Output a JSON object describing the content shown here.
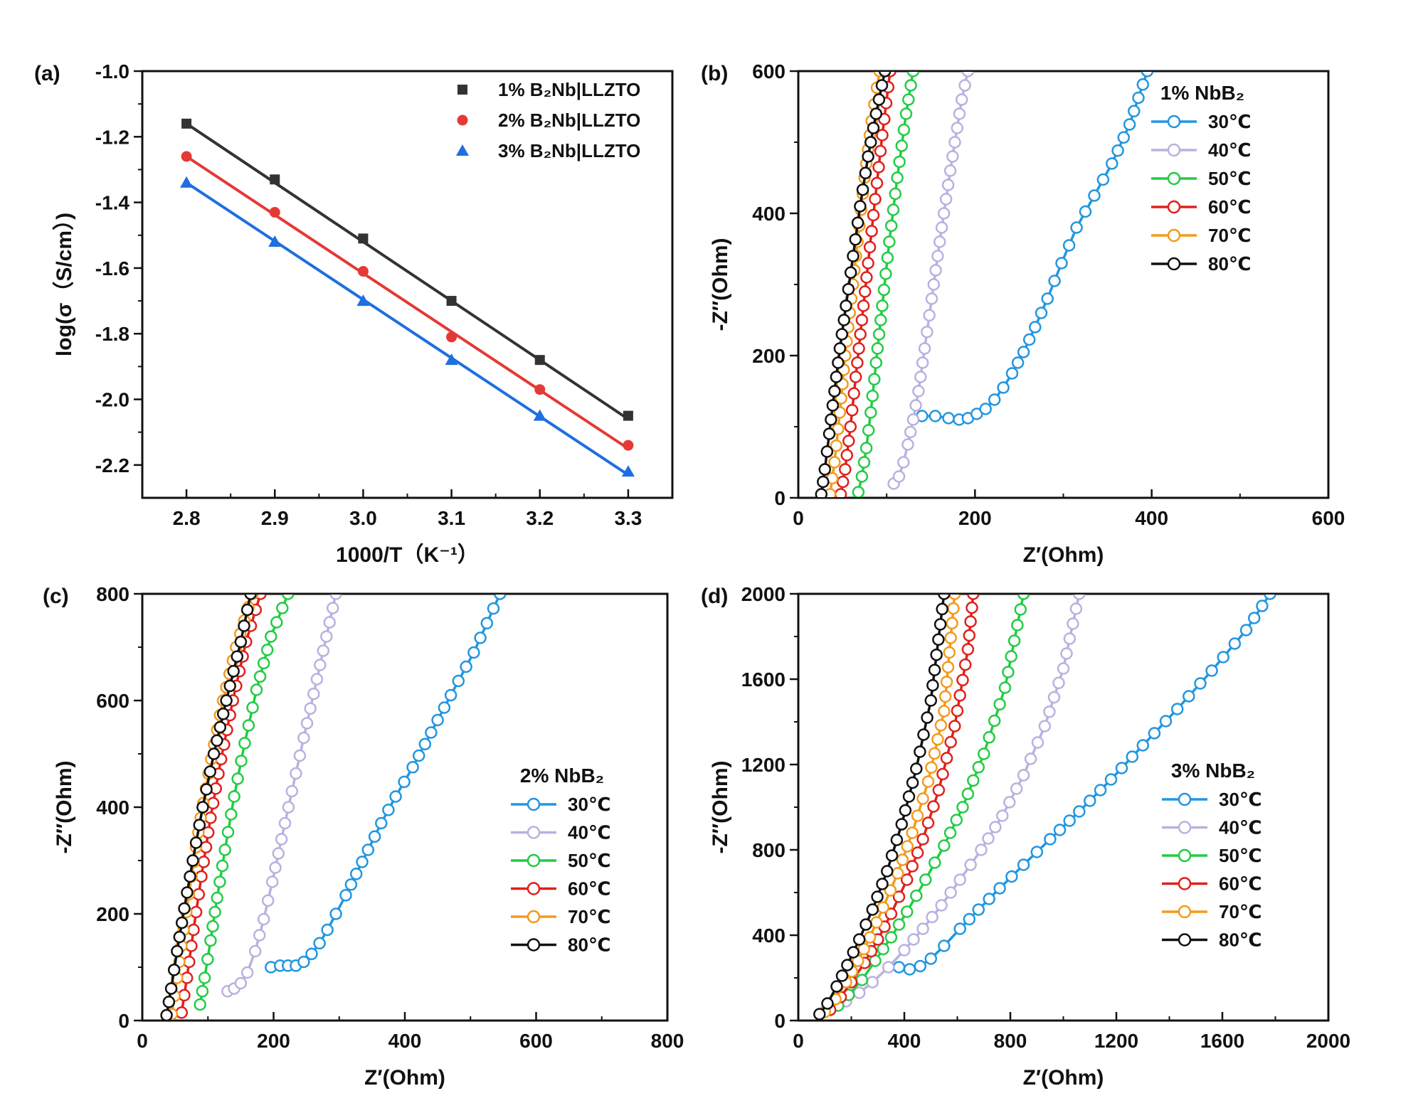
{
  "chart_data": [
    {
      "id": "a",
      "type": "scatter",
      "panel_label": "(a)",
      "xlabel": "1000/T（K⁻¹）",
      "ylabel": "log(σ（S/cm）)",
      "xlim": [
        2.75,
        3.35
      ],
      "ylim": [
        -2.3,
        -1.0
      ],
      "xticks": [
        2.8,
        2.9,
        3.0,
        3.1,
        3.2,
        3.3
      ],
      "xtick_labels": [
        "2.8",
        "2.9",
        "3.0",
        "3.1",
        "3.2",
        "3.3"
      ],
      "yticks": [
        -1.0,
        -1.2,
        -1.4,
        -1.6,
        -1.8,
        -2.0,
        -2.2
      ],
      "ytick_labels": [
        "-1.0",
        "-1.2",
        "-1.4",
        "-1.6",
        "-1.8",
        "-2.0",
        "-2.2"
      ],
      "legend_position": "top-right",
      "series": [
        {
          "name": "1% B₂Nb|LLZTO",
          "color": "#333333",
          "marker": "square",
          "x": [
            2.8,
            2.9,
            3.0,
            3.1,
            3.2,
            3.3
          ],
          "values": [
            -1.16,
            -1.33,
            -1.51,
            -1.7,
            -1.88,
            -2.05
          ],
          "fit": [
            -1.16,
            -2.06
          ]
        },
        {
          "name": "2% B₂Nb|LLZTO",
          "color": "#e53935",
          "marker": "circle",
          "x": [
            2.8,
            2.9,
            3.0,
            3.1,
            3.2,
            3.3
          ],
          "values": [
            -1.26,
            -1.43,
            -1.61,
            -1.81,
            -1.97,
            -2.14
          ],
          "fit": [
            -1.26,
            -2.15
          ]
        },
        {
          "name": "3% B₂Nb|LLZTO",
          "color": "#1e6fe0",
          "marker": "triangle",
          "x": [
            2.8,
            2.9,
            3.0,
            3.1,
            3.2,
            3.3
          ],
          "values": [
            -1.34,
            -1.52,
            -1.7,
            -1.88,
            -2.05,
            -2.22
          ],
          "fit": [
            -1.34,
            -2.23
          ]
        }
      ]
    },
    {
      "id": "b",
      "type": "line",
      "panel_label": "(b)",
      "xlabel": "Z′(Ohm)",
      "ylabel": "-Z′′(Ohm)",
      "xlim": [
        0,
        600
      ],
      "ylim": [
        0,
        600
      ],
      "xticks": [
        0,
        200,
        400,
        600
      ],
      "xtick_labels": [
        "0",
        "200",
        "400",
        "600"
      ],
      "yticks": [
        0,
        200,
        400,
        600
      ],
      "ytick_labels": [
        "0",
        "200",
        "400",
        "600"
      ],
      "legend_title": "1% NbB₂",
      "legend_position": "top-right",
      "series": [
        {
          "name": "30℃",
          "color": "#2196e0",
          "x": [
            140,
            155,
            170,
            182,
            192,
            202,
            212,
            222,
            232,
            242,
            255,
            268,
            282,
            298,
            315,
            335,
            355,
            375,
            395
          ],
          "values": [
            115,
            115,
            112,
            110,
            112,
            118,
            125,
            138,
            155,
            175,
            205,
            240,
            280,
            330,
            380,
            425,
            470,
            525,
            600
          ]
        },
        {
          "name": "40℃",
          "color": "#b8b2e0",
          "x": [
            108,
            114,
            119,
            124,
            130,
            136,
            143,
            151,
            160,
            172,
            185,
            192
          ],
          "values": [
            20,
            30,
            50,
            75,
            110,
            150,
            210,
            280,
            360,
            460,
            560,
            600
          ]
        },
        {
          "name": "50℃",
          "color": "#22cc44",
          "x": [
            68,
            72,
            77,
            82,
            88,
            95,
            103,
            112,
            122,
            130
          ],
          "values": [
            8,
            30,
            70,
            120,
            190,
            270,
            360,
            450,
            540,
            600
          ]
        },
        {
          "name": "60℃",
          "color": "#e0201c",
          "x": [
            48,
            53,
            59,
            65,
            72,
            79,
            87,
            95,
            104
          ],
          "values": [
            5,
            40,
            100,
            170,
            250,
            330,
            420,
            510,
            600
          ]
        },
        {
          "name": "70℃",
          "color": "#f39a1c",
          "x": [
            36,
            41,
            47,
            53,
            60,
            67,
            75,
            83,
            92
          ],
          "values": [
            5,
            50,
            120,
            200,
            280,
            360,
            450,
            530,
            600
          ]
        },
        {
          "name": "80℃",
          "color": "#111111",
          "x": [
            26,
            30,
            35,
            41,
            47,
            54,
            62,
            70,
            79,
            88,
            98
          ],
          "values": [
            5,
            40,
            90,
            150,
            210,
            270,
            340,
            410,
            480,
            540,
            600
          ]
        }
      ]
    },
    {
      "id": "c",
      "type": "line",
      "panel_label": "(c)",
      "xlabel": "Z′(Ohm)",
      "ylabel": "-Z′′(Ohm)",
      "xlim": [
        0,
        800
      ],
      "ylim": [
        0,
        800
      ],
      "xticks": [
        0,
        200,
        400,
        600,
        800
      ],
      "xtick_labels": [
        "0",
        "200",
        "400",
        "600",
        "800"
      ],
      "yticks": [
        0,
        200,
        400,
        600,
        800
      ],
      "ytick_labels": [
        "0",
        "200",
        "400",
        "600",
        "800"
      ],
      "legend_title": "2% NbB₂",
      "legend_position": "center-right",
      "series": [
        {
          "name": "30℃",
          "color": "#2196e0",
          "x": [
            196,
            210,
            222,
            234,
            246,
            258,
            270,
            282,
            295,
            310,
            326,
            344,
            364,
            386,
            412,
            440,
            470,
            505,
            545
          ],
          "values": [
            100,
            103,
            103,
            103,
            110,
            125,
            145,
            170,
            200,
            235,
            275,
            320,
            370,
            420,
            475,
            540,
            610,
            690,
            800
          ]
        },
        {
          "name": "40℃",
          "color": "#b8b2e0",
          "x": [
            130,
            140,
            150,
            160,
            172,
            185,
            198,
            212,
            228,
            246,
            266,
            295
          ],
          "values": [
            55,
            60,
            70,
            90,
            130,
            190,
            260,
            340,
            430,
            530,
            640,
            800
          ]
        },
        {
          "name": "50℃",
          "color": "#22cc44",
          "x": [
            88,
            95,
            104,
            114,
            126,
            140,
            156,
            174,
            196,
            222
          ],
          "values": [
            30,
            80,
            150,
            230,
            320,
            420,
            520,
            620,
            720,
            800
          ]
        },
        {
          "name": "60℃",
          "color": "#e0201c",
          "x": [
            60,
            68,
            78,
            90,
            104,
            120,
            138,
            158,
            180
          ],
          "values": [
            15,
            80,
            170,
            270,
            380,
            490,
            600,
            710,
            800
          ]
        },
        {
          "name": "70℃",
          "color": "#f39a1c",
          "x": [
            45,
            53,
            63,
            75,
            89,
            105,
            123,
            143,
            168
          ],
          "values": [
            12,
            80,
            170,
            270,
            380,
            490,
            600,
            700,
            800
          ]
        },
        {
          "name": "80℃",
          "color": "#111111",
          "x": [
            37,
            44,
            53,
            64,
            77,
            92,
            109,
            128,
            150,
            165
          ],
          "values": [
            10,
            60,
            130,
            210,
            300,
            400,
            500,
            600,
            710,
            800
          ]
        }
      ]
    },
    {
      "id": "d",
      "type": "line",
      "panel_label": "(d)",
      "xlabel": "Z′(Ohm)",
      "ylabel": "-Z′′(Ohm)",
      "xlim": [
        0,
        2000
      ],
      "ylim": [
        0,
        2000
      ],
      "xticks": [
        0,
        400,
        800,
        1200,
        1600,
        2000
      ],
      "xtick_labels": [
        "0",
        "400",
        "800",
        "1200",
        "1600",
        "2000"
      ],
      "yticks": [
        0,
        400,
        800,
        1200,
        1600,
        2000
      ],
      "ytick_labels": [
        "0",
        "400",
        "800",
        "1200",
        "1600",
        "2000"
      ],
      "legend_title": "3% NbB₂",
      "legend_position": "center-right",
      "series": [
        {
          "name": "30℃",
          "color": "#2196e0",
          "x": [
            380,
            420,
            460,
            500,
            550,
            610,
            680,
            760,
            850,
            950,
            1060,
            1180,
            1300,
            1430,
            1560,
            1690,
            1780
          ],
          "values": [
            250,
            240,
            255,
            290,
            350,
            430,
            520,
            620,
            730,
            850,
            980,
            1130,
            1290,
            1460,
            1640,
            1830,
            2000
          ]
        },
        {
          "name": "40℃",
          "color": "#b8b2e0",
          "x": [
            180,
            230,
            280,
            340,
            400,
            470,
            540,
            610,
            690,
            770,
            850,
            930,
            1000,
            1060
          ],
          "values": [
            90,
            130,
            180,
            250,
            330,
            430,
            540,
            660,
            800,
            960,
            1150,
            1380,
            1650,
            2000
          ]
        },
        {
          "name": "50℃",
          "color": "#22cc44",
          "x": [
            150,
            190,
            240,
            290,
            350,
            410,
            480,
            550,
            620,
            700,
            780,
            850
          ],
          "values": [
            70,
            120,
            190,
            280,
            390,
            510,
            660,
            820,
            1000,
            1250,
            1560,
            2000
          ]
        },
        {
          "name": "60℃",
          "color": "#e0201c",
          "x": [
            120,
            160,
            200,
            250,
            300,
            350,
            410,
            470,
            530,
            590,
            640,
            660
          ],
          "values": [
            50,
            110,
            180,
            270,
            380,
            500,
            660,
            850,
            1080,
            1380,
            1740,
            2000
          ]
        },
        {
          "name": "70℃",
          "color": "#f39a1c",
          "x": [
            100,
            140,
            180,
            225,
            270,
            320,
            375,
            430,
            490,
            550,
            590
          ],
          "values": [
            40,
            100,
            180,
            280,
            390,
            530,
            690,
            880,
            1120,
            1450,
            2000
          ]
        },
        {
          "name": "80℃",
          "color": "#111111",
          "x": [
            80,
            110,
            145,
            185,
            230,
            280,
            335,
            390,
            445,
            500,
            550
          ],
          "values": [
            30,
            80,
            160,
            260,
            380,
            520,
            700,
            920,
            1180,
            1500,
            2000
          ]
        }
      ]
    }
  ]
}
